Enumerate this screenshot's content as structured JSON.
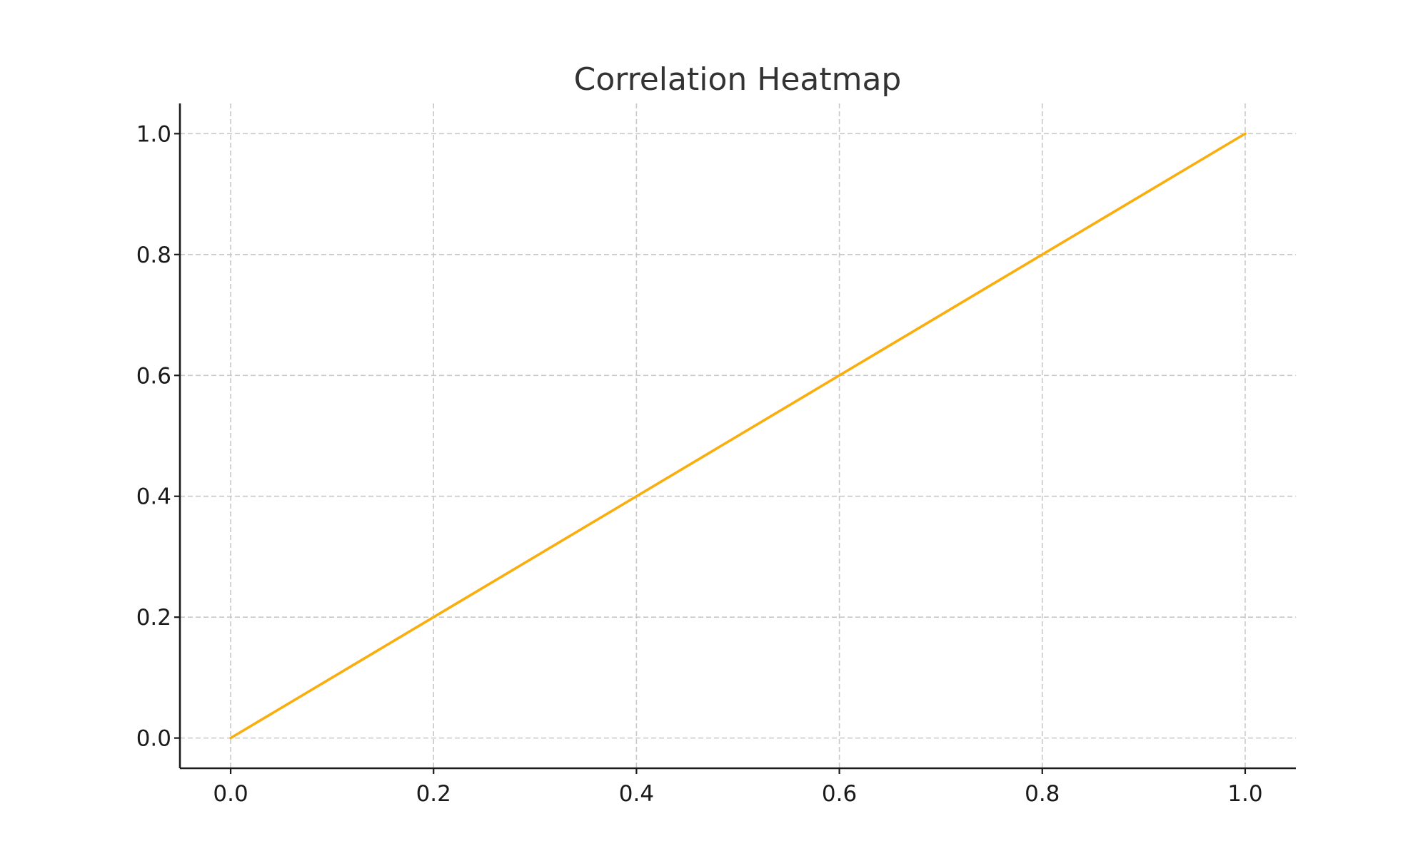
{
  "chart_data": {
    "type": "line",
    "title": "Correlation Heatmap",
    "xlabel": "",
    "ylabel": "",
    "xlim": [
      -0.05,
      1.05
    ],
    "ylim": [
      -0.05,
      1.05
    ],
    "xticks": [
      0.0,
      0.2,
      0.4,
      0.6,
      0.8,
      1.0
    ],
    "yticks": [
      0.0,
      0.2,
      0.4,
      0.6,
      0.8,
      1.0
    ],
    "xtick_labels": [
      "0.0",
      "0.2",
      "0.4",
      "0.6",
      "0.8",
      "1.0"
    ],
    "ytick_labels": [
      "0.0",
      "0.2",
      "0.4",
      "0.6",
      "0.8",
      "1.0"
    ],
    "grid": true,
    "series": [
      {
        "x": [
          0.0,
          1.0
        ],
        "y": [
          0.0,
          1.0
        ],
        "color": "#F9AE0E"
      }
    ]
  }
}
